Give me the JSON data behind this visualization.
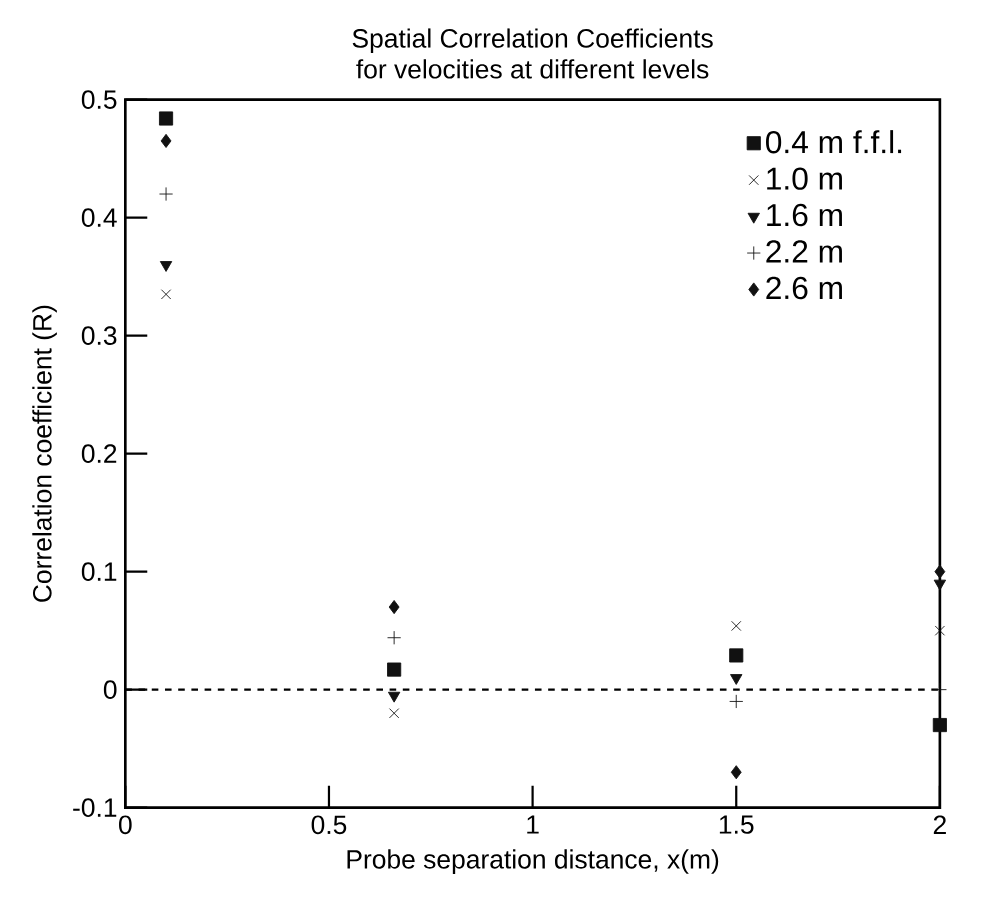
{
  "chart_data": {
    "type": "scatter",
    "title": "Spatial Correlation Coefficients",
    "subtitle": "for velocities at different levels",
    "xlabel": "Probe separation distance, x(m)",
    "ylabel": "Correlation coefficient (R)",
    "x": [
      0.1,
      0.66,
      1.5,
      2.0
    ],
    "series": [
      {
        "name": "0.4 m f.f.l.",
        "color": "#111111",
        "marker": "square",
        "values": [
          0.484,
          0.017,
          0.029,
          -0.03
        ]
      },
      {
        "name": "1.0 m",
        "color": "#111111",
        "marker": "cross",
        "values": [
          0.335,
          -0.02,
          0.054,
          0.05
        ]
      },
      {
        "name": "1.6 m",
        "color": "#111111",
        "marker": "triangle",
        "values": [
          0.36,
          -0.005,
          0.01,
          0.09
        ]
      },
      {
        "name": "2.2 m",
        "color": "#111111",
        "marker": "plus",
        "values": [
          0.42,
          0.044,
          -0.01,
          0.0
        ]
      },
      {
        "name": "2.6 m",
        "color": "#111111",
        "marker": "diamond",
        "values": [
          0.465,
          0.07,
          -0.07,
          0.1
        ]
      }
    ],
    "xlim": [
      0,
      2
    ],
    "ylim": [
      -0.1,
      0.5
    ],
    "xticks": [
      0,
      0.5,
      1,
      1.5,
      2
    ],
    "yticks": [
      -0.1,
      0,
      0.1,
      0.2,
      0.3,
      0.4,
      0.5
    ],
    "ref_lines": [
      {
        "axis": "y",
        "value": 0,
        "line_style": "dashed"
      }
    ],
    "legend": "top right",
    "grid": false
  }
}
